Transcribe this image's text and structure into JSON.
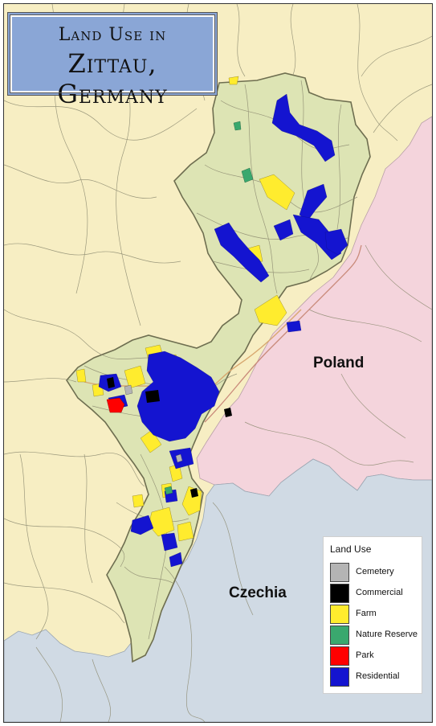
{
  "title": {
    "line1": "Land Use in",
    "line2": "Zittau, Germany"
  },
  "labels": {
    "poland": "Poland",
    "czechia": "Czechia"
  },
  "colors": {
    "background_land": "#f7eec3",
    "poland": "#f4d4dc",
    "czechia": "#d0dae4",
    "study_area": "#dde4b4",
    "boundary": "#6e6e50",
    "roads": "#8c8a70"
  },
  "legend": {
    "title": "Land Use",
    "items": [
      {
        "label": "Cemetery",
        "color": "#b4b4b4"
      },
      {
        "label": "Commercial",
        "color": "#000000"
      },
      {
        "label": "Farm",
        "color": "#ffec2e"
      },
      {
        "label": "Nature Reserve",
        "color": "#3aa86e"
      },
      {
        "label": "Park",
        "color": "#ff0000"
      },
      {
        "label": "Residential",
        "color": "#1414d0"
      }
    ]
  }
}
